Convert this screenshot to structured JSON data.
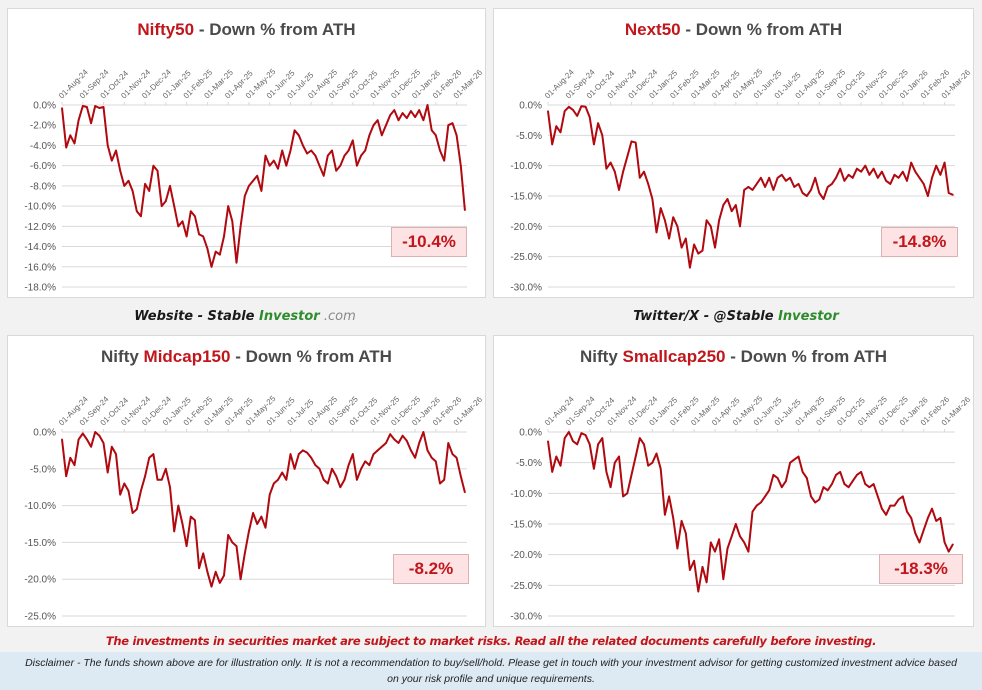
{
  "charts_meta": {
    "line_color": "#b0090f",
    "accent_color": "#c0161c",
    "grid_color": "#d9d9d9",
    "callout_bg": "#fde3e3"
  },
  "captions": {
    "website_prefix": "Website - Stable ",
    "website_brand": "Investor",
    "website_suffix": " .com",
    "twitter_prefix": "Twitter/X - @Stable ",
    "twitter_brand": "Investor"
  },
  "footer": {
    "risk_warning": "The investments in securities market are subject to market risks. Read all the related documents carefully before investing.",
    "disclaimer": "Disclaimer - The funds shown above are for illustration only. It is not a recommendation to buy/sell/hold. Please get in touch with your investment advisor for getting customized investment advice based on your risk profile and unique requirements."
  },
  "chart_data": [
    {
      "type": "line",
      "title_prefix": "",
      "title_highlight": "Nifty50",
      "title_suffix": " - Down % from ATH",
      "xlabel": "",
      "ylabel": "",
      "ylim": [
        -18,
        0
      ],
      "yticks": [
        0,
        -2,
        -4,
        -6,
        -8,
        -10,
        -12,
        -14,
        -16,
        -18
      ],
      "ytick_labels": [
        "0.0%",
        "-2.0%",
        "-4.0%",
        "-6.0%",
        "-8.0%",
        "-10.0%",
        "-12.0%",
        "-14.0%",
        "-16.0%",
        "-18.0%"
      ],
      "x_tick_labels": [
        "01-Aug-24",
        "01-Sep-24",
        "01-Oct-24",
        "01-Nov-24",
        "01-Dec-24",
        "01-Jan-25",
        "01-Feb-25",
        "01-Mar-25",
        "01-Apr-25",
        "01-May-25",
        "01-Jun-25",
        "01-Jul-25",
        "01-Aug-25",
        "01-Sep-25",
        "01-Oct-25",
        "01-Nov-25",
        "01-Dec-25",
        "01-Jan-26",
        "01-Feb-26",
        "01-Mar-26"
      ],
      "grid": true,
      "latest_label": "-10.4%",
      "series": [
        {
          "name": "Nifty50",
          "x_month_index": [
            0,
            0.2,
            0.4,
            0.6,
            0.8,
            1.0,
            1.2,
            1.4,
            1.6,
            1.8,
            2.0,
            2.2,
            2.4,
            2.6,
            2.8,
            3.0,
            3.2,
            3.4,
            3.6,
            3.8,
            4.0,
            4.2,
            4.4,
            4.6,
            4.8,
            5.0,
            5.2,
            5.4,
            5.6,
            5.8,
            6.0,
            6.2,
            6.4,
            6.6,
            6.8,
            7.0,
            7.2,
            7.4,
            7.6,
            7.8,
            8.0,
            8.2,
            8.4,
            8.6,
            8.8,
            9.0,
            9.2,
            9.4,
            9.6,
            9.8,
            10.0,
            10.2,
            10.4,
            10.6,
            10.8,
            11.0,
            11.2,
            11.4,
            11.6,
            11.8,
            12.0,
            12.2,
            12.4,
            12.6,
            12.8,
            13.0,
            13.2,
            13.4,
            13.6,
            13.8,
            14.0,
            14.2,
            14.4,
            14.6,
            14.8,
            15.0,
            15.2,
            15.4,
            15.6,
            15.8,
            16.0,
            16.2,
            16.4,
            16.6,
            16.8,
            17.0,
            17.2,
            17.4,
            17.6,
            17.8,
            18.0,
            18.2,
            18.4,
            18.6,
            18.8,
            19.0,
            19.2,
            19.4
          ],
          "values": [
            -0.3,
            -4.2,
            -3.0,
            -3.8,
            -1.5,
            -0.1,
            -0.2,
            -1.8,
            -0.1,
            -0.3,
            -0.2,
            -4.0,
            -5.5,
            -4.5,
            -6.5,
            -8.0,
            -7.5,
            -8.5,
            -10.5,
            -11.0,
            -7.8,
            -8.5,
            -6.0,
            -6.5,
            -10.0,
            -9.5,
            -8.0,
            -10.0,
            -12.0,
            -11.5,
            -13.0,
            -10.5,
            -11.0,
            -12.8,
            -13.0,
            -14.2,
            -16.0,
            -14.5,
            -14.8,
            -13.0,
            -10.0,
            -11.5,
            -15.6,
            -12.0,
            -9.0,
            -8.0,
            -7.5,
            -7.0,
            -8.5,
            -5.0,
            -6.0,
            -5.5,
            -6.3,
            -4.5,
            -6.0,
            -4.5,
            -2.5,
            -3.0,
            -4.0,
            -4.8,
            -4.5,
            -5.0,
            -6.0,
            -7.0,
            -5.0,
            -4.5,
            -6.5,
            -6.0,
            -5.0,
            -4.5,
            -3.5,
            -6.0,
            -5.0,
            -4.5,
            -3.0,
            -2.0,
            -1.5,
            -3.0,
            -2.0,
            -1.0,
            -0.5,
            -1.5,
            -0.8,
            -1.3,
            -0.6,
            -1.2,
            -0.5,
            -1.5,
            0,
            -2.5,
            -3.0,
            -4.5,
            -5.5,
            -2.0,
            -1.8,
            -3.0,
            -6.0,
            -10.4
          ]
        }
      ]
    },
    {
      "type": "line",
      "title_prefix": "",
      "title_highlight": "Next50",
      "title_suffix": " - Down % from ATH",
      "xlabel": "",
      "ylabel": "",
      "ylim": [
        -30,
        0
      ],
      "yticks": [
        0,
        -5,
        -10,
        -15,
        -20,
        -25,
        -30
      ],
      "ytick_labels": [
        "0.0%",
        "-5.0%",
        "-10.0%",
        "-15.0%",
        "-20.0%",
        "-25.0%",
        "-30.0%"
      ],
      "x_tick_labels": [
        "01-Aug-24",
        "01-Sep-24",
        "01-Oct-24",
        "01-Nov-24",
        "01-Dec-24",
        "01-Jan-25",
        "01-Feb-25",
        "01-Mar-25",
        "01-Apr-25",
        "01-May-25",
        "01-Jun-25",
        "01-Jul-25",
        "01-Aug-25",
        "01-Sep-25",
        "01-Oct-25",
        "01-Nov-25",
        "01-Dec-25",
        "01-Jan-26",
        "01-Feb-26",
        "01-Mar-26"
      ],
      "grid": true,
      "latest_label": "-14.8%",
      "series": [
        {
          "name": "Next50",
          "x_month_index": [
            0,
            0.2,
            0.4,
            0.6,
            0.8,
            1.0,
            1.2,
            1.4,
            1.6,
            1.8,
            2.0,
            2.2,
            2.4,
            2.6,
            2.8,
            3.0,
            3.2,
            3.4,
            3.6,
            3.8,
            4.0,
            4.2,
            4.4,
            4.6,
            4.8,
            5.0,
            5.2,
            5.4,
            5.6,
            5.8,
            6.0,
            6.2,
            6.4,
            6.6,
            6.8,
            7.0,
            7.2,
            7.4,
            7.6,
            7.8,
            8.0,
            8.2,
            8.4,
            8.6,
            8.8,
            9.0,
            9.2,
            9.4,
            9.6,
            9.8,
            10.0,
            10.2,
            10.4,
            10.6,
            10.8,
            11.0,
            11.2,
            11.4,
            11.6,
            11.8,
            12.0,
            12.2,
            12.4,
            12.6,
            12.8,
            13.0,
            13.2,
            13.4,
            13.6,
            13.8,
            14.0,
            14.2,
            14.4,
            14.6,
            14.8,
            15.0,
            15.2,
            15.4,
            15.6,
            15.8,
            16.0,
            16.2,
            16.4,
            16.6,
            16.8,
            17.0,
            17.2,
            17.4,
            17.6,
            17.8,
            18.0,
            18.2,
            18.4,
            18.6,
            18.8,
            19.0,
            19.2,
            19.4
          ],
          "values": [
            -1.0,
            -6.5,
            -3.5,
            -4.5,
            -1.0,
            -0.3,
            -0.8,
            -1.8,
            -0.2,
            -0.3,
            -2.0,
            -6.5,
            -3.0,
            -5.0,
            -10.5,
            -9.5,
            -11.0,
            -14.0,
            -11.0,
            -8.5,
            -6.0,
            -6.2,
            -12.0,
            -11.0,
            -13.0,
            -15.5,
            -21.0,
            -17.0,
            -19.0,
            -22.0,
            -18.5,
            -20.0,
            -23.5,
            -22.0,
            -26.8,
            -23.0,
            -24.5,
            -24.0,
            -19.0,
            -20.0,
            -23.5,
            -19.0,
            -16.5,
            -15.5,
            -17.5,
            -16.5,
            -20.0,
            -14.0,
            -13.5,
            -14.0,
            -13.0,
            -12.0,
            -13.5,
            -12.0,
            -14.0,
            -12.0,
            -11.5,
            -12.5,
            -12.0,
            -13.5,
            -13.0,
            -14.5,
            -15.0,
            -14.0,
            -12.0,
            -14.5,
            -15.5,
            -13.5,
            -13.0,
            -12.0,
            -10.5,
            -12.5,
            -11.5,
            -12.0,
            -10.5,
            -11.0,
            -10.0,
            -11.5,
            -10.5,
            -12.0,
            -11.0,
            -12.5,
            -13.0,
            -11.5,
            -12.0,
            -11.0,
            -12.5,
            -9.5,
            -11.0,
            -12.0,
            -13.0,
            -15.0,
            -12.0,
            -10.0,
            -11.5,
            -9.5,
            -14.5,
            -14.8
          ]
        }
      ]
    },
    {
      "type": "line",
      "title_prefix": "Nifty ",
      "title_highlight": "Midcap150",
      "title_suffix": " - Down % from ATH",
      "xlabel": "",
      "ylabel": "",
      "ylim": [
        -25,
        0
      ],
      "yticks": [
        0,
        -5,
        -10,
        -15,
        -20,
        -25
      ],
      "ytick_labels": [
        "0.0%",
        "-5.0%",
        "-10.0%",
        "-15.0%",
        "-20.0%",
        "-25.0%"
      ],
      "x_tick_labels": [
        "01-Aug-24",
        "01-Sep-24",
        "01-Oct-24",
        "01-Nov-24",
        "01-Dec-24",
        "01-Jan-25",
        "01-Feb-25",
        "01-Mar-25",
        "01-Apr-25",
        "01-May-25",
        "01-Jun-25",
        "01-Jul-25",
        "01-Aug-25",
        "01-Sep-25",
        "01-Oct-25",
        "01-Nov-25",
        "01-Dec-25",
        "01-Jan-26",
        "01-Feb-26",
        "01-Mar-26"
      ],
      "grid": true,
      "latest_label": "-8.2%",
      "series": [
        {
          "name": "Nifty Midcap150",
          "x_month_index": [
            0,
            0.2,
            0.4,
            0.6,
            0.8,
            1.0,
            1.2,
            1.4,
            1.6,
            1.8,
            2.0,
            2.2,
            2.4,
            2.6,
            2.8,
            3.0,
            3.2,
            3.4,
            3.6,
            3.8,
            4.0,
            4.2,
            4.4,
            4.6,
            4.8,
            5.0,
            5.2,
            5.4,
            5.6,
            5.8,
            6.0,
            6.2,
            6.4,
            6.6,
            6.8,
            7.0,
            7.2,
            7.4,
            7.6,
            7.8,
            8.0,
            8.2,
            8.4,
            8.6,
            8.8,
            9.0,
            9.2,
            9.4,
            9.6,
            9.8,
            10.0,
            10.2,
            10.4,
            10.6,
            10.8,
            11.0,
            11.2,
            11.4,
            11.6,
            11.8,
            12.0,
            12.2,
            12.4,
            12.6,
            12.8,
            13.0,
            13.2,
            13.4,
            13.6,
            13.8,
            14.0,
            14.2,
            14.4,
            14.6,
            14.8,
            15.0,
            15.2,
            15.4,
            15.6,
            15.8,
            16.0,
            16.2,
            16.4,
            16.6,
            16.8,
            17.0,
            17.2,
            17.4,
            17.6,
            17.8,
            18.0,
            18.2,
            18.4,
            18.6,
            18.8,
            19.0,
            19.2,
            19.4
          ],
          "values": [
            -1.0,
            -6.0,
            -3.5,
            -4.5,
            -1.0,
            -0.2,
            -1.0,
            -2.0,
            0,
            -0.5,
            -1.5,
            -5.5,
            -2.0,
            -3.0,
            -8.5,
            -7.0,
            -8.0,
            -11.0,
            -10.5,
            -8.0,
            -6.0,
            -3.5,
            -3.0,
            -6.5,
            -6.5,
            -5.0,
            -7.5,
            -13.5,
            -10.0,
            -12.5,
            -15.5,
            -11.5,
            -12.0,
            -18.5,
            -16.5,
            -19.0,
            -21.0,
            -19.0,
            -20.5,
            -19.5,
            -14.0,
            -15.0,
            -15.5,
            -20.0,
            -16.5,
            -13.5,
            -11.0,
            -12.5,
            -11.5,
            -13.0,
            -8.5,
            -7.0,
            -6.5,
            -5.5,
            -6.5,
            -3.0,
            -5.0,
            -3.0,
            -2.5,
            -2.8,
            -3.5,
            -4.5,
            -5.0,
            -6.5,
            -7.0,
            -5.0,
            -6.0,
            -7.5,
            -6.5,
            -4.5,
            -3.0,
            -6.5,
            -5.0,
            -4.0,
            -4.5,
            -3.0,
            -2.5,
            -2.0,
            -1.5,
            -0.3,
            -1.0,
            -1.5,
            -0.5,
            -1.2,
            -2.5,
            -3.5,
            -1.5,
            0,
            -2.5,
            -3.5,
            -4.0,
            -7.0,
            -6.5,
            -1.5,
            -3.0,
            -3.5,
            -6.0,
            -8.2
          ]
        }
      ]
    },
    {
      "type": "line",
      "title_prefix": "Nifty ",
      "title_highlight": "Smallcap250",
      "title_suffix": " - Down % from ATH",
      "xlabel": "",
      "ylabel": "",
      "ylim": [
        -30,
        0
      ],
      "yticks": [
        0,
        -5,
        -10,
        -15,
        -20,
        -25,
        -30
      ],
      "ytick_labels": [
        "0.0%",
        "-5.0%",
        "-10.0%",
        "-15.0%",
        "-20.0%",
        "-25.0%",
        "-30.0%"
      ],
      "x_tick_labels": [
        "01-Aug-24",
        "01-Sep-24",
        "01-Oct-24",
        "01-Nov-24",
        "01-Dec-24",
        "01-Jan-25",
        "01-Feb-25",
        "01-Mar-25",
        "01-Apr-25",
        "01-May-25",
        "01-Jun-25",
        "01-Jul-25",
        "01-Aug-25",
        "01-Sep-25",
        "01-Oct-25",
        "01-Nov-25",
        "01-Dec-25",
        "01-Jan-26",
        "01-Feb-26",
        "01-Mar-26"
      ],
      "grid": true,
      "latest_label": "-18.3%",
      "series": [
        {
          "name": "Nifty Smallcap250",
          "x_month_index": [
            0,
            0.2,
            0.4,
            0.6,
            0.8,
            1.0,
            1.2,
            1.4,
            1.6,
            1.8,
            2.0,
            2.2,
            2.4,
            2.6,
            2.8,
            3.0,
            3.2,
            3.4,
            3.6,
            3.8,
            4.0,
            4.2,
            4.4,
            4.6,
            4.8,
            5.0,
            5.2,
            5.4,
            5.6,
            5.8,
            6.0,
            6.2,
            6.4,
            6.6,
            6.8,
            7.0,
            7.2,
            7.4,
            7.6,
            7.8,
            8.0,
            8.2,
            8.4,
            8.6,
            8.8,
            9.0,
            9.2,
            9.4,
            9.6,
            9.8,
            10.0,
            10.2,
            10.4,
            10.6,
            10.8,
            11.0,
            11.2,
            11.4,
            11.6,
            11.8,
            12.0,
            12.2,
            12.4,
            12.6,
            12.8,
            13.0,
            13.2,
            13.4,
            13.6,
            13.8,
            14.0,
            14.2,
            14.4,
            14.6,
            14.8,
            15.0,
            15.2,
            15.4,
            15.6,
            15.8,
            16.0,
            16.2,
            16.4,
            16.6,
            16.8,
            17.0,
            17.2,
            17.4,
            17.6,
            17.8,
            18.0,
            18.2,
            18.4,
            18.6,
            18.8,
            19.0,
            19.2,
            19.4
          ],
          "values": [
            -1.5,
            -6.5,
            -4.0,
            -5.5,
            -1.0,
            0,
            -1.5,
            -2.0,
            -0.2,
            -0.5,
            -2.0,
            -6.0,
            -2.0,
            -1.0,
            -6.5,
            -9.0,
            -5.0,
            -4.0,
            -10.5,
            -10.0,
            -7.0,
            -4.0,
            -1.0,
            -2.0,
            -5.5,
            -5.0,
            -3.5,
            -6.0,
            -13.5,
            -10.5,
            -14.0,
            -19.0,
            -14.5,
            -16.5,
            -22.5,
            -21.0,
            -26.0,
            -22.0,
            -24.5,
            -18.0,
            -19.5,
            -17.5,
            -24.0,
            -19.0,
            -17.0,
            -15.0,
            -17.0,
            -18.0,
            -19.5,
            -13.0,
            -12.0,
            -11.5,
            -10.5,
            -9.5,
            -7.0,
            -7.5,
            -9.0,
            -8.0,
            -5.0,
            -4.5,
            -4.0,
            -6.5,
            -7.5,
            -10.5,
            -11.5,
            -11.0,
            -9.0,
            -9.5,
            -8.5,
            -7.0,
            -6.5,
            -8.5,
            -9.0,
            -8.0,
            -7.0,
            -6.5,
            -8.5,
            -9.0,
            -8.5,
            -10.5,
            -12.5,
            -13.5,
            -12.0,
            -12.0,
            -11.0,
            -10.5,
            -13.0,
            -14.0,
            -16.5,
            -18.0,
            -16.0,
            -14.0,
            -12.5,
            -14.5,
            -14.0,
            -18.0,
            -19.5,
            -18.3
          ]
        }
      ]
    }
  ]
}
